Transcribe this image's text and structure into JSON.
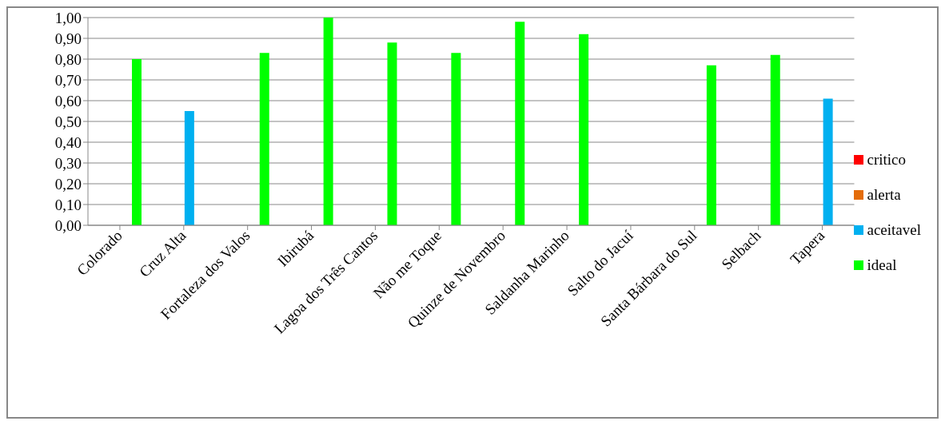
{
  "chart_data": {
    "type": "bar",
    "categories": [
      "Colorado",
      "Cruz Alta",
      "Fortaleza dos Valos",
      "Ibirubá",
      "Lagoa dos Três Cantos",
      "Não me Toque",
      "Quinze de Novembro",
      "Saldanha Marinho",
      "Salto do Jacuí",
      "Santa Bárbara do Sul",
      "Selbach",
      "Tapera"
    ],
    "series": [
      {
        "name": "critico",
        "color": "#ff0000",
        "values": [
          null,
          null,
          null,
          null,
          null,
          null,
          null,
          null,
          null,
          null,
          null,
          null
        ]
      },
      {
        "name": "alerta",
        "color": "#e46c0a",
        "values": [
          null,
          null,
          null,
          null,
          null,
          null,
          null,
          null,
          null,
          null,
          null,
          null
        ]
      },
      {
        "name": "aceitavel",
        "color": "#00b0f0",
        "values": [
          null,
          0.55,
          null,
          null,
          null,
          null,
          null,
          null,
          null,
          null,
          null,
          0.61
        ]
      },
      {
        "name": "ideal",
        "color": "#00ff00",
        "values": [
          0.8,
          null,
          0.83,
          1.0,
          0.88,
          0.83,
          0.98,
          0.92,
          null,
          0.77,
          0.82,
          null
        ]
      }
    ],
    "ylim": [
      0,
      1
    ],
    "yticks": [
      {
        "value": 0,
        "label": "0,00"
      },
      {
        "value": 0.1,
        "label": "0,10"
      },
      {
        "value": 0.2,
        "label": "0,20"
      },
      {
        "value": 0.3,
        "label": "0,30"
      },
      {
        "value": 0.4,
        "label": "0,40"
      },
      {
        "value": 0.5,
        "label": "0,50"
      },
      {
        "value": 0.6,
        "label": "0,60"
      },
      {
        "value": 0.7,
        "label": "0,70"
      },
      {
        "value": 0.8,
        "label": "0,80"
      },
      {
        "value": 0.9,
        "label": "0,90"
      },
      {
        "value": 1,
        "label": "1,00"
      }
    ],
    "grid": "y",
    "legend": "right"
  }
}
